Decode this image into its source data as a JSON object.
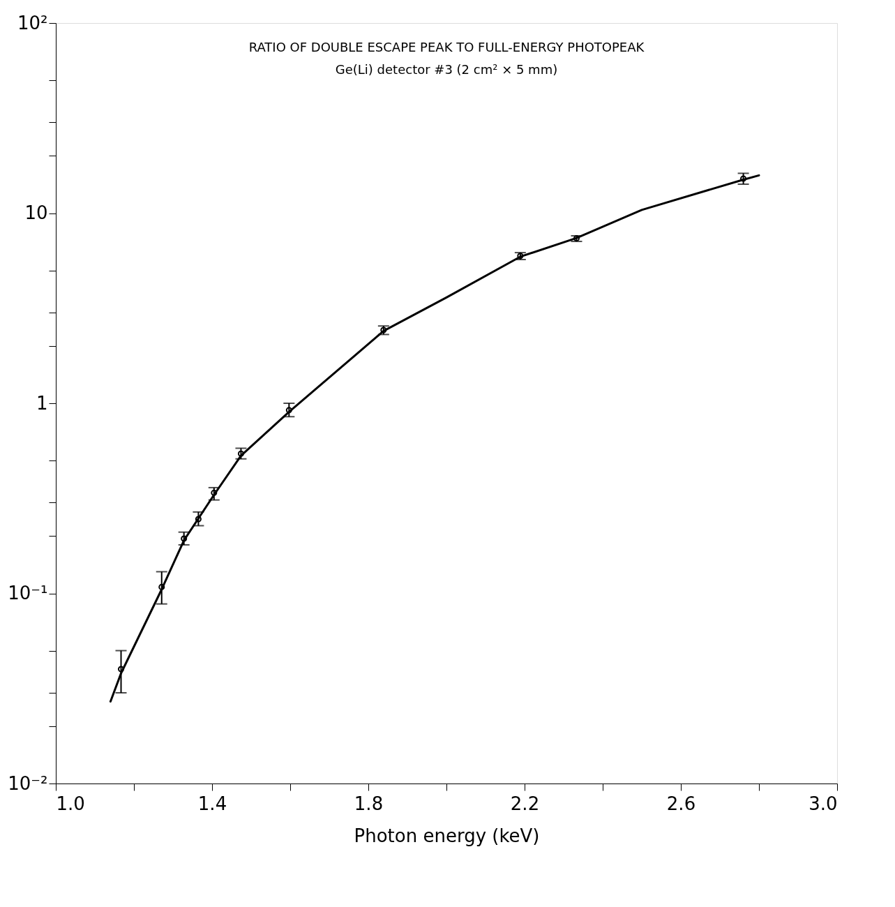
{
  "chart_data": {
    "type": "scatter",
    "title": "RATIO OF DOUBLE ESCAPE PEAK TO FULL-ENERGY PHOTOPEAK",
    "subtitle": "Ge(Li) detector #3    (2 cm² × 5 mm)",
    "xlabel": "Photon energy   (keV)",
    "xlim": [
      1.0,
      3.0
    ],
    "ylim": [
      0.01,
      100
    ],
    "log": "y",
    "grid": false,
    "marker": "circle",
    "xticks": [
      {
        "value": 1,
        "label": "1.0"
      },
      {
        "value": 1.2,
        "label": null
      },
      1.4,
      {
        "value": 1.6,
        "label": null
      },
      1.8,
      {
        "value": 2.0,
        "label": null
      },
      2.2,
      {
        "value": 2.4,
        "label": null
      },
      2.6,
      {
        "value": 2.8,
        "label": null
      },
      {
        "value": 3,
        "label": "3.0"
      }
    ],
    "yticks": [
      {
        "value": 0.01,
        "label": "10⁻²"
      },
      {
        "value": 0.02,
        "label": null
      },
      {
        "value": 0.03,
        "label": null
      },
      {
        "value": 0.05,
        "label": null
      },
      {
        "value": 0.1,
        "label": "10⁻¹"
      },
      {
        "value": 0.2,
        "label": null
      },
      {
        "value": 0.3,
        "label": null
      },
      {
        "value": 0.5,
        "label": null
      },
      1,
      {
        "value": 2,
        "label": null
      },
      {
        "value": 3,
        "label": null
      },
      {
        "value": 5,
        "label": null
      },
      10,
      {
        "value": 20,
        "label": null
      },
      {
        "value": 30,
        "label": null
      },
      {
        "value": 50,
        "label": null
      },
      {
        "value": 100,
        "label": "10²"
      }
    ],
    "series": [
      {
        "type": "line",
        "color": "#000000",
        "marker": "none",
        "line_style": "solid",
        "x": [
          1.14,
          1.167,
          1.271,
          1.328,
          1.405,
          1.474,
          1.597,
          1.839,
          2.0,
          2.189,
          2.333,
          2.5,
          2.76,
          2.8
        ],
        "values": [
          0.027,
          0.038,
          0.105,
          0.19,
          0.33,
          0.53,
          0.9,
          2.4,
          3.6,
          5.9,
          7.4,
          10.4,
          15,
          15.8
        ]
      },
      {
        "type": "scatter",
        "color": "#000000",
        "x": [
          1.167,
          1.271,
          1.328,
          1.365,
          1.405,
          1.474,
          1.597,
          1.839,
          2.189,
          2.333,
          2.76
        ],
        "values": [
          0.04,
          0.108,
          0.194,
          0.246,
          0.338,
          0.543,
          0.92,
          2.43,
          5.96,
          7.37,
          15.2
        ],
        "errors": [
          [
            0.03,
            0.05
          ],
          [
            0.088,
            0.13
          ],
          [
            0.18,
            0.21
          ],
          [
            0.227,
            0.268
          ],
          [
            0.31,
            0.36
          ],
          [
            0.51,
            0.58
          ],
          [
            0.85,
            1.0
          ],
          [
            2.3,
            2.55
          ],
          [
            5.7,
            6.2
          ],
          [
            7.1,
            7.6
          ],
          [
            14.2,
            16.2
          ]
        ]
      }
    ]
  }
}
